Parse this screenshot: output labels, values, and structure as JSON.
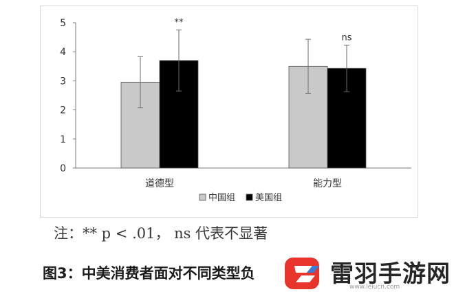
{
  "chart_data": {
    "type": "bar",
    "categories": [
      "道德型",
      "能力型"
    ],
    "series": [
      {
        "name": "中国组",
        "values": [
          2.95,
          3.5
        ],
        "error": [
          0.88,
          0.93
        ],
        "color": "#c9c9c9",
        "annotation": ""
      },
      {
        "name": "美国组",
        "values": [
          3.7,
          3.43
        ],
        "error": [
          1.05,
          0.8
        ],
        "color": "#000000",
        "annotation": ""
      }
    ],
    "significance": [
      "**",
      "ns"
    ],
    "ylim": [
      0,
      5
    ],
    "yticks": [
      "0",
      "1",
      "2",
      "3",
      "4",
      "5"
    ],
    "grid": false,
    "legend_position": "bottom"
  },
  "note": "注：** p < .01， ns 代表不显著",
  "caption": "图3：中美消费者面对不同类型负",
  "watermark": {
    "title": "雷羽手游网",
    "url": "www.leiucn.com",
    "brand_color": "#e8342a"
  }
}
